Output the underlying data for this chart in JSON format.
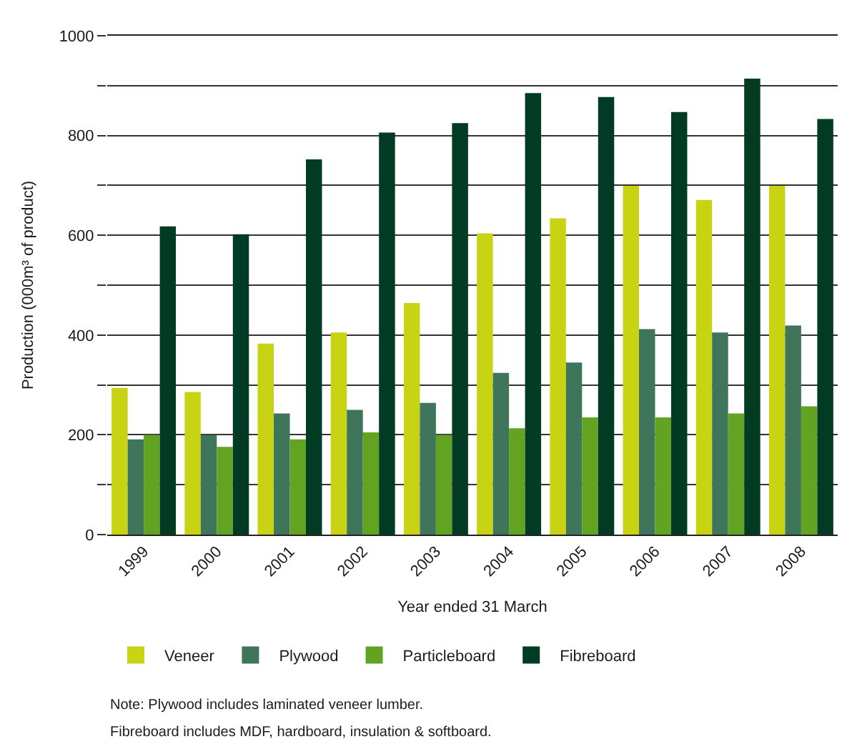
{
  "chart_data": {
    "type": "bar",
    "categories": [
      "1999",
      "2000",
      "2001",
      "2002",
      "2003",
      "2004",
      "2005",
      "2006",
      "2007",
      "2008"
    ],
    "xlabel": "Year ended 31 March",
    "ylabel": "Production (000m³ of product)",
    "series": [
      {
        "name": "Veneer",
        "color": "#c8d314",
        "values": [
          294,
          286,
          383,
          405,
          464,
          604,
          634,
          699,
          671,
          699
        ]
      },
      {
        "name": "Plywood",
        "color": "#3f755a",
        "values": [
          191,
          200,
          243,
          250,
          264,
          324,
          345,
          412,
          405,
          419
        ]
      },
      {
        "name": "Particleboard",
        "color": "#62a321",
        "values": [
          200,
          176,
          191,
          205,
          200,
          213,
          235,
          235,
          243,
          257
        ]
      },
      {
        "name": "Fibreboard",
        "color": "#023b24",
        "values": [
          618,
          602,
          752,
          806,
          825,
          885,
          877,
          847,
          914,
          833
        ]
      }
    ],
    "ylim": [
      0,
      1000
    ],
    "yticks": [
      0,
      {
        "value": 100,
        "label": null
      },
      200,
      {
        "value": 300,
        "label": null
      },
      400,
      {
        "value": 500,
        "label": null
      },
      600,
      {
        "value": 700,
        "label": null
      },
      800,
      {
        "value": 900,
        "label": null
      },
      1000
    ],
    "grid": "y",
    "legend": "bottom",
    "annotations": [
      "Note: Plywood includes laminated veneer lumber.",
      "Fibreboard includes MDF, hardboard, insulation & softboard."
    ]
  }
}
